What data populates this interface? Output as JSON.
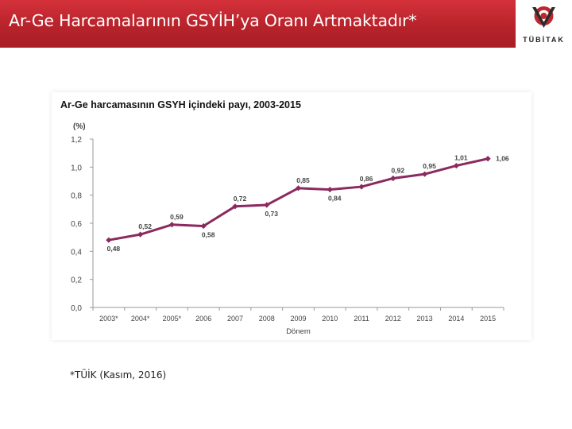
{
  "header": {
    "title": "Ar-Ge Harcamalarının GSYİH’ya Oranı Artmaktadır*",
    "background_color": "#c0272d"
  },
  "logo": {
    "text": "TÜBİTAK",
    "color": "#c0272d"
  },
  "footnote": "*TÜİK (Kasım, 2016)",
  "chart_data": {
    "type": "line",
    "title": "Ar-Ge harcamasının GSYH içindeki payı, 2003-2015",
    "unit_label": "(%)",
    "xlabel": "Dönem",
    "ylabel": "",
    "categories": [
      "2003*",
      "2004*",
      "2005*",
      "2006",
      "2007",
      "2008",
      "2009",
      "2010",
      "2011",
      "2012",
      "2013",
      "2014",
      "2015"
    ],
    "series": [
      {
        "values": [
          0.48,
          0.52,
          0.59,
          0.58,
          0.72,
          0.73,
          0.85,
          0.84,
          0.86,
          0.92,
          0.95,
          1.01,
          1.06
        ],
        "data_labels": [
          "0,48",
          "0,52",
          "0,59",
          "0,58",
          "0,72",
          "0,73",
          "0,85",
          "0,84",
          "0,86",
          "0,92",
          "0,95",
          "1,01",
          "1,06"
        ],
        "color": "#8b2a5e"
      }
    ],
    "ylim": [
      0,
      1.2
    ],
    "yticks": [
      0,
      0.2,
      0.4,
      0.6,
      0.8,
      1.0,
      1.2
    ],
    "ytick_labels": [
      "0,0",
      "0,2",
      "0,4",
      "0,6",
      "0,8",
      "1,0",
      "1,2"
    ],
    "grid": false,
    "legend": "none"
  }
}
